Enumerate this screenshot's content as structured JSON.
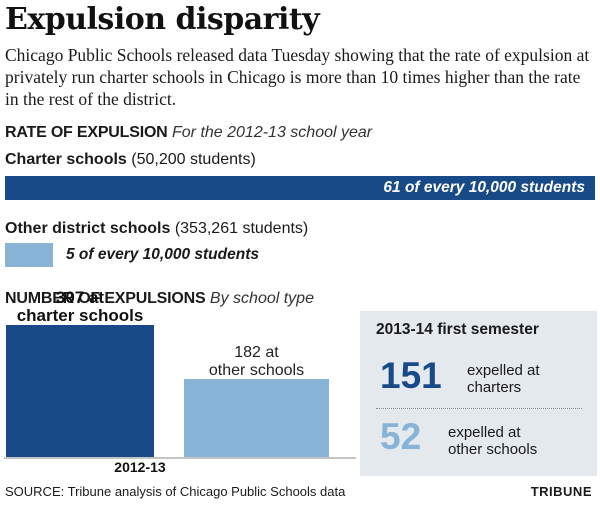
{
  "headline": "Expulsion disparity",
  "intro": "Chicago Public Schools released data Tuesday showing that the rate of expulsion at privately run charter schools in Chicago is more than 10 times higher than the rate in the rest of the district.",
  "colors": {
    "dark_blue": "#174a86",
    "light_blue": "#87b3d6",
    "panel_bg": "#e4e9ee"
  },
  "chart_data": [
    {
      "type": "bar",
      "orientation": "horizontal",
      "title": "RATE OF EXPULSION",
      "subtitle": "For the 2012-13 school year",
      "unit": "per 10,000 students",
      "categories": [
        "Charter schools",
        "Other district schools"
      ],
      "student_counts": [
        "(50,200 students)",
        "(353,261 students)"
      ],
      "values": [
        61,
        5
      ],
      "data_labels": [
        "61 of every 10,000 students",
        "5 of every 10,000 students"
      ]
    },
    {
      "type": "bar",
      "orientation": "vertical",
      "title": "NUMBER OF EXPULSIONS",
      "subtitle": "By school type",
      "xlabel": "2012-13",
      "categories": [
        "charter schools",
        "other schools"
      ],
      "values": [
        307,
        182
      ],
      "data_labels": [
        [
          "307 at",
          "charter schools"
        ],
        [
          "182 at",
          "other schools"
        ]
      ],
      "ylim": [
        0,
        330
      ]
    }
  ],
  "panel": {
    "title": "2013-14 first semester",
    "items": [
      {
        "value": "151",
        "line1": "expelled at",
        "line2": "charters"
      },
      {
        "value": "52",
        "line1": "expelled at",
        "line2": "other schools"
      }
    ]
  },
  "source": "SOURCE: Tribune analysis of Chicago Public Schools data",
  "credit": "TRIBUNE"
}
